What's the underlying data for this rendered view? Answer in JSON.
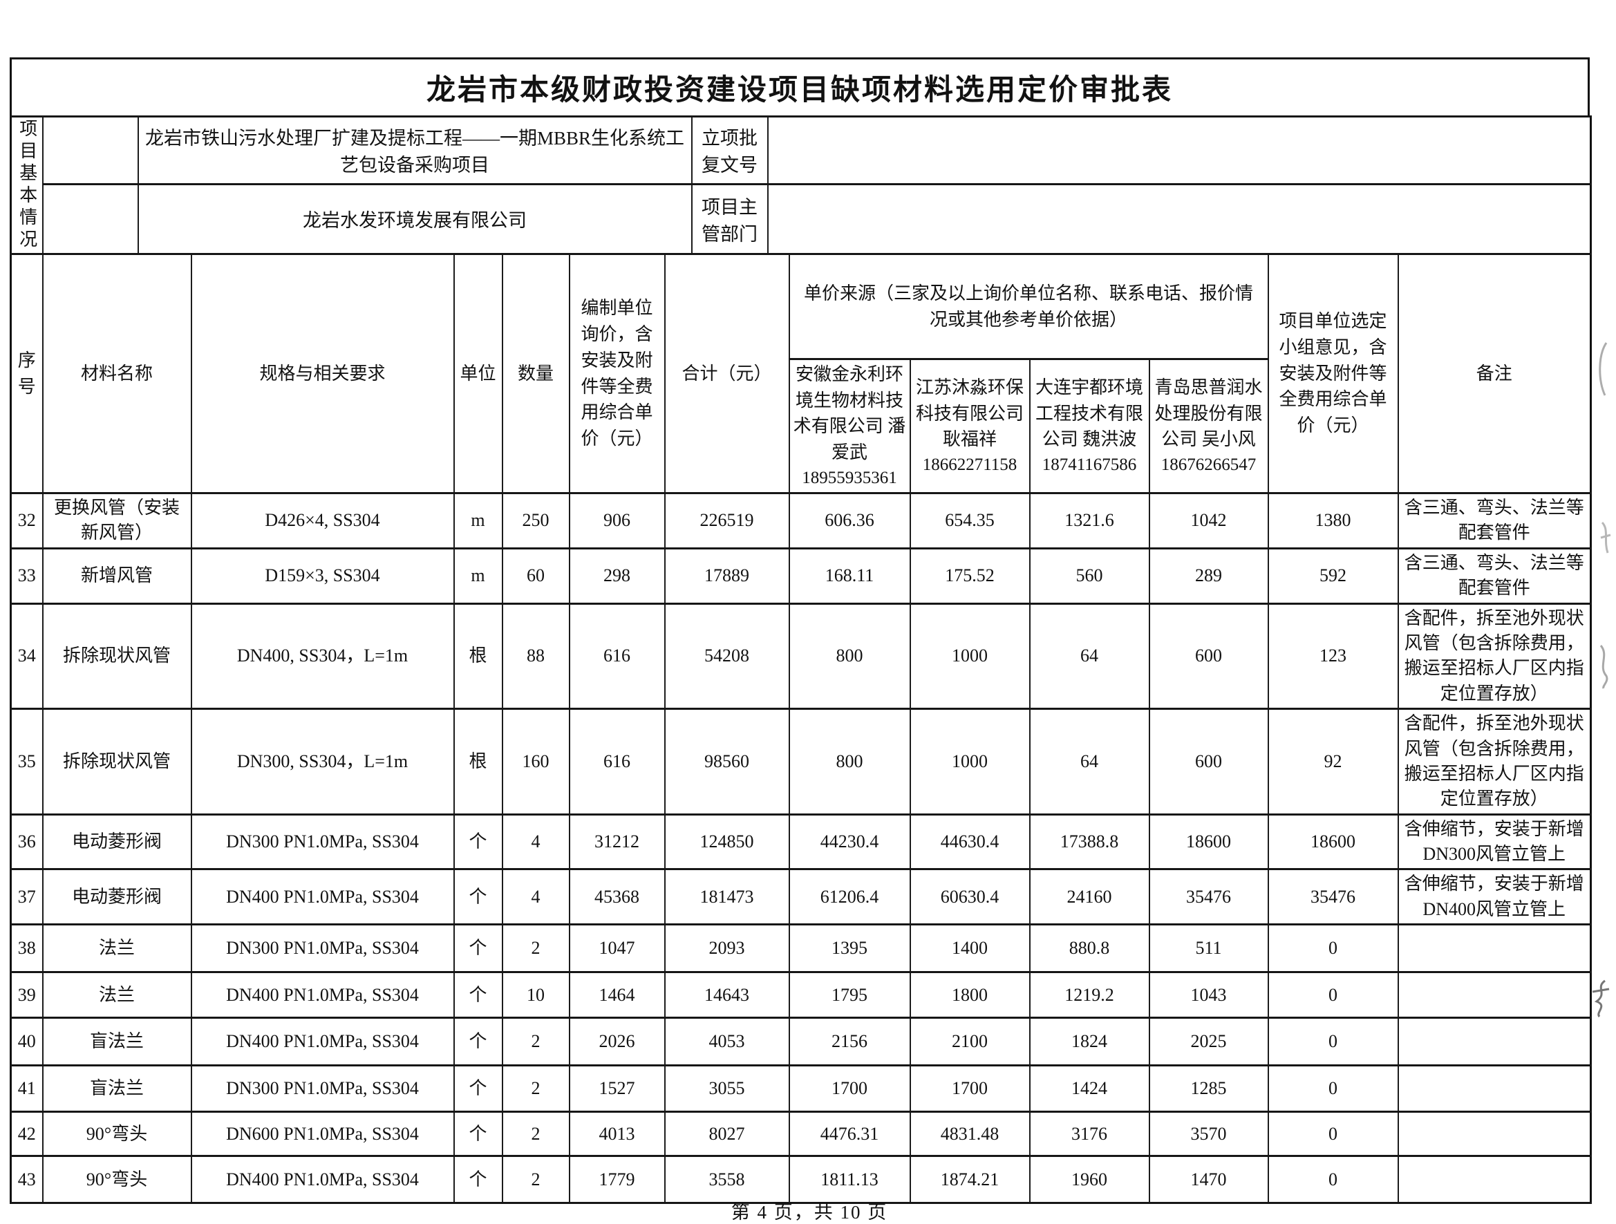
{
  "page": {
    "title": "龙岩市本级财政投资建设项目缺项材料选用定价审批表",
    "footer": "第 4 页，共 10 页"
  },
  "project_info": {
    "side_label": "项目基本情况",
    "row1": {
      "label": "",
      "value": "龙岩市铁山污水处理厂扩建及提标工程——一期MBBR生化系统工艺包设备采购项目",
      "field_label": "立项批复文号",
      "field_value": ""
    },
    "row2": {
      "label": "",
      "value": "龙岩水发环境发展有限公司",
      "field_label": "项目主管部门",
      "field_value": ""
    }
  },
  "table": {
    "headers": {
      "seq": "序号",
      "material": "材料名称",
      "spec": "规格与相关要求",
      "unit": "单位",
      "qty": "数量",
      "inquiry": "编制单位询价，含安装及附件等全费用综合单价（元）",
      "total": "合计（元）",
      "source_group": "单价来源（三家及以上询价单位名称、联系电话、报价情况或其他参考单价依据）",
      "selected": "项目单位选定小组意见，含安装及附件等全费用综合单价（元）",
      "remark": "备注"
    },
    "vendors": [
      {
        "name": "安徽金永利环境生物材料技术有限公司 潘爱武",
        "phone": "18955935361"
      },
      {
        "name": "江苏沐淼环保科技有限公司 耿福祥",
        "phone": "18662271158"
      },
      {
        "name": "大连宇都环境工程技术有限公司 魏洪波",
        "phone": "18741167586"
      },
      {
        "name": "青岛思普润水处理股份有限公司 吴小风",
        "phone": "18676266547"
      }
    ],
    "rows": [
      {
        "seq": "32",
        "material": "更换风管（安装新风管）",
        "spec": "D426×4, SS304",
        "unit": "m",
        "qty": "250",
        "unit_price": "906",
        "total": "226519",
        "quotes": [
          "606.36",
          "654.35",
          "1321.6",
          "1042"
        ],
        "selected": "1380",
        "remark": "含三通、弯头、法兰等配套管件"
      },
      {
        "seq": "33",
        "material": "新增风管",
        "spec": "D159×3, SS304",
        "unit": "m",
        "qty": "60",
        "unit_price": "298",
        "total": "17889",
        "quotes": [
          "168.11",
          "175.52",
          "560",
          "289"
        ],
        "selected": "592",
        "remark": "含三通、弯头、法兰等配套管件"
      },
      {
        "seq": "34",
        "material": "拆除现状风管",
        "spec": "DN400, SS304，L=1m",
        "unit": "根",
        "qty": "88",
        "unit_price": "616",
        "total": "54208",
        "quotes": [
          "800",
          "1000",
          "64",
          "600"
        ],
        "selected": "123",
        "remark": "含配件，拆至池外现状风管（包含拆除费用，搬运至招标人厂区内指定位置存放）"
      },
      {
        "seq": "35",
        "material": "拆除现状风管",
        "spec": "DN300, SS304，L=1m",
        "unit": "根",
        "qty": "160",
        "unit_price": "616",
        "total": "98560",
        "quotes": [
          "800",
          "1000",
          "64",
          "600"
        ],
        "selected": "92",
        "remark": "含配件，拆至池外现状风管（包含拆除费用，搬运至招标人厂区内指定位置存放）"
      },
      {
        "seq": "36",
        "material": "电动菱形阀",
        "spec": "DN300 PN1.0MPa, SS304",
        "unit": "个",
        "qty": "4",
        "unit_price": "31212",
        "total": "124850",
        "quotes": [
          "44230.4",
          "44630.4",
          "17388.8",
          "18600"
        ],
        "selected": "18600",
        "remark": "含伸缩节，安装于新增DN300风管立管上"
      },
      {
        "seq": "37",
        "material": "电动菱形阀",
        "spec": "DN400 PN1.0MPa, SS304",
        "unit": "个",
        "qty": "4",
        "unit_price": "45368",
        "total": "181473",
        "quotes": [
          "61206.4",
          "60630.4",
          "24160",
          "35476"
        ],
        "selected": "35476",
        "remark": "含伸缩节，安装于新增DN400风管立管上"
      },
      {
        "seq": "38",
        "material": "法兰",
        "spec": "DN300 PN1.0MPa, SS304",
        "unit": "个",
        "qty": "2",
        "unit_price": "1047",
        "total": "2093",
        "quotes": [
          "1395",
          "1400",
          "880.8",
          "511"
        ],
        "selected": "0",
        "remark": ""
      },
      {
        "seq": "39",
        "material": "法兰",
        "spec": "DN400 PN1.0MPa, SS304",
        "unit": "个",
        "qty": "10",
        "unit_price": "1464",
        "total": "14643",
        "quotes": [
          "1795",
          "1800",
          "1219.2",
          "1043"
        ],
        "selected": "0",
        "remark": ""
      },
      {
        "seq": "40",
        "material": "盲法兰",
        "spec": "DN400 PN1.0MPa, SS304",
        "unit": "个",
        "qty": "2",
        "unit_price": "2026",
        "total": "4053",
        "quotes": [
          "2156",
          "2100",
          "1824",
          "2025"
        ],
        "selected": "0",
        "remark": ""
      },
      {
        "seq": "41",
        "material": "盲法兰",
        "spec": "DN300 PN1.0MPa, SS304",
        "unit": "个",
        "qty": "2",
        "unit_price": "1527",
        "total": "3055",
        "quotes": [
          "1700",
          "1700",
          "1424",
          "1285"
        ],
        "selected": "0",
        "remark": ""
      },
      {
        "seq": "42",
        "material": "90°弯头",
        "spec": "DN600 PN1.0MPa, SS304",
        "unit": "个",
        "qty": "2",
        "unit_price": "4013",
        "total": "8027",
        "quotes": [
          "4476.31",
          "4831.48",
          "3176",
          "3570"
        ],
        "selected": "0",
        "remark": ""
      },
      {
        "seq": "43",
        "material": "90°弯头",
        "spec": "DN400 PN1.0MPa, SS304",
        "unit": "个",
        "qty": "2",
        "unit_price": "1779",
        "total": "3558",
        "quotes": [
          "1811.13",
          "1874.21",
          "1960",
          "1470"
        ],
        "selected": "0",
        "remark": ""
      }
    ]
  }
}
